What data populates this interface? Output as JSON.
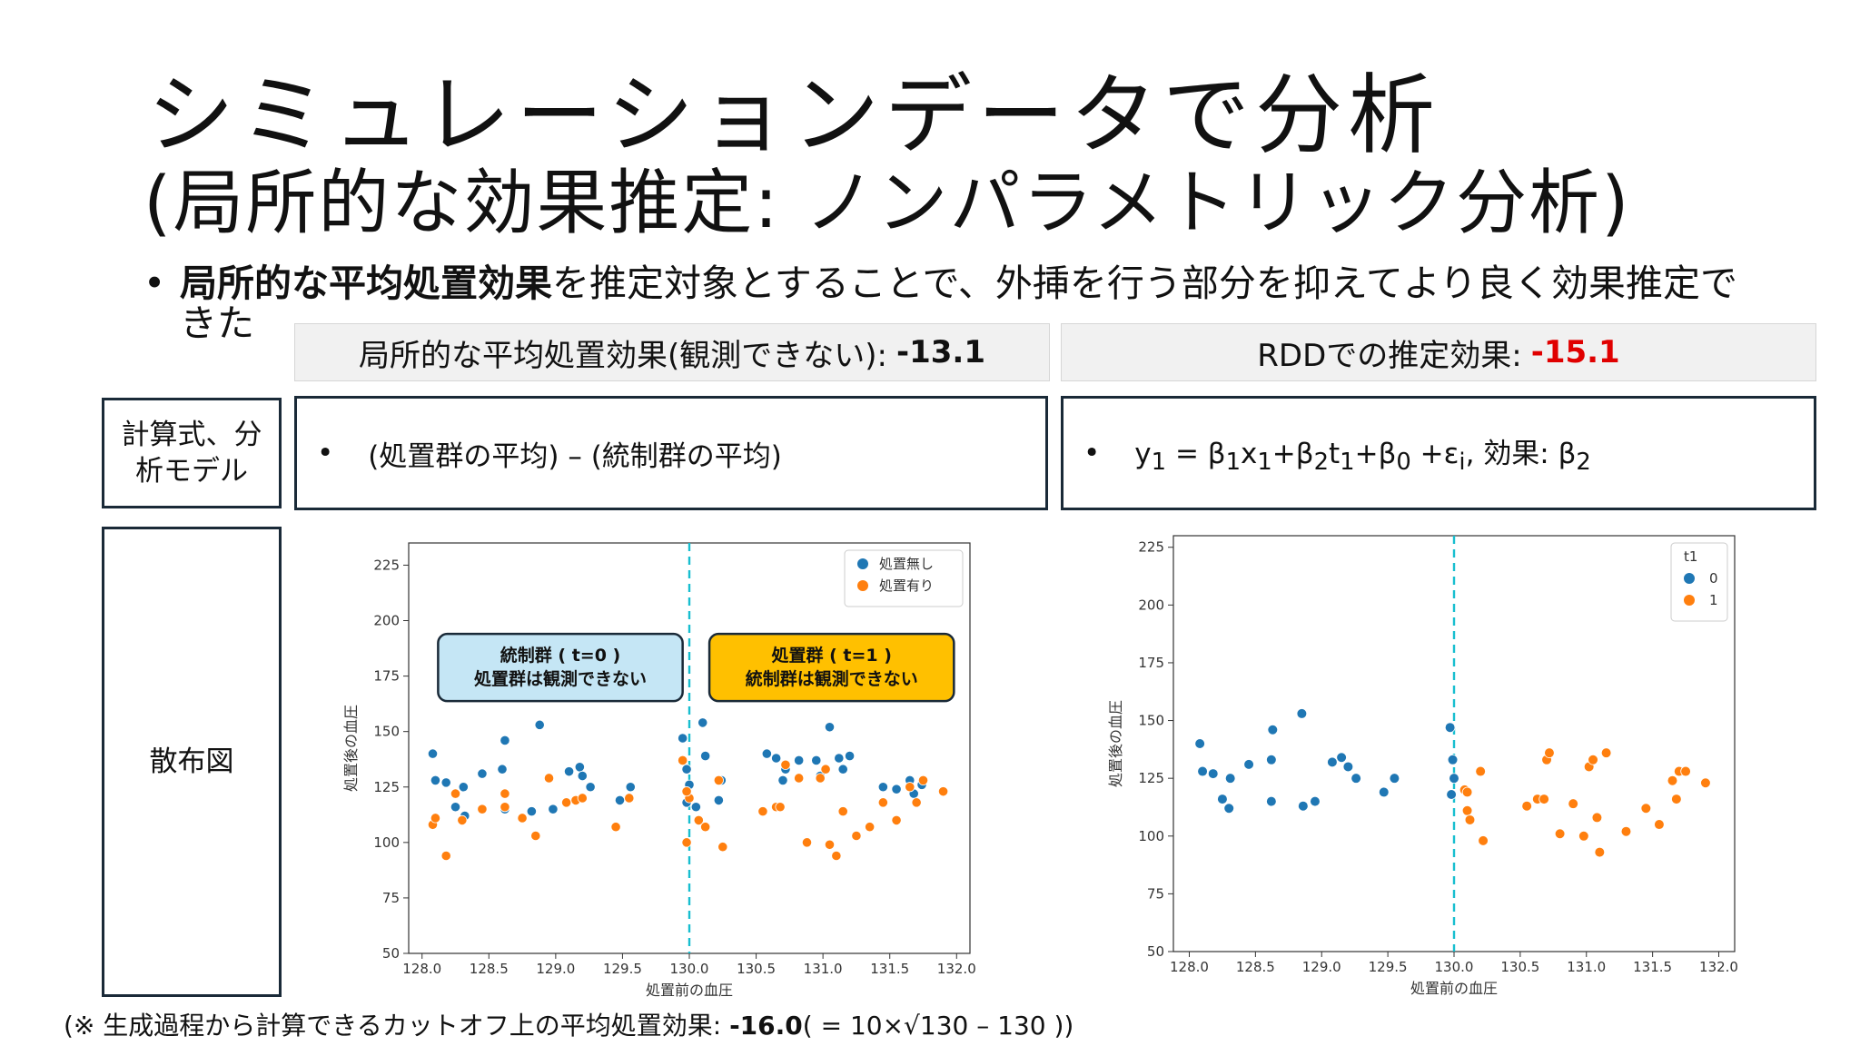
{
  "slide": {
    "title": "シミュレーションデータで分析",
    "subtitle": "(局所的な効果推定: ノンパラメトリック分析)",
    "bullet_bold": "局所的な平均処置効果",
    "bullet_rest": "を推定対象とすることで、外挿を行う部分を抑えてより良く効果推定できた",
    "left_header_label": "局所的な平均処置効果(観測できない):",
    "left_header_value": "-13.1",
    "right_header_label": "RDDでの推定効果:",
    "right_header_value": "-15.1",
    "row1_label": "計算式、分析モデル",
    "row2_label": "散布図",
    "left_formula": "(処置群の平均) – (統制群の平均)",
    "right_formula_parts": {
      "y": "y",
      "s1": "1",
      "eq": " = β",
      "x": "x",
      "plus": "+β",
      "s2": "2",
      "t": "t",
      "s0": "0",
      "eps": " +ε",
      "si": "i",
      "effect": ",  効果: β"
    },
    "note_prefix": "(※ 生成過程から計算できるカットオフ上の平均処置効果: ",
    "note_value": "-16.0",
    "note_suffix": "( = 10×√130 – 130 ))"
  },
  "chart_data": [
    {
      "type": "scatter",
      "xlabel": "処置前の血圧",
      "ylabel": "処置後の血圧",
      "xlim": [
        127.9,
        132.1
      ],
      "ylim": [
        50,
        235
      ],
      "xticks": [
        "128.0",
        "128.5",
        "129.0",
        "129.5",
        "130.0",
        "130.5",
        "131.0",
        "131.5",
        "132.0"
      ],
      "yticks": [
        "50",
        "75",
        "100",
        "125",
        "150",
        "175",
        "200",
        "225"
      ],
      "cutoff": 130,
      "legend": {
        "title": "",
        "placement": "top-right",
        "items": [
          "処置無し",
          "処置有り"
        ]
      },
      "annotations": [
        {
          "line1": "統制群 ( t=0 )",
          "line2": "処置群は観測できない",
          "color": "#c5e6f5"
        },
        {
          "line1": "処置群 ( t=1 )",
          "line2": "統制群は観測できない",
          "color": "#ffc000"
        }
      ],
      "series": [
        {
          "name": "処置無し",
          "color": "#1f77b4",
          "points": [
            [
              128.08,
              140
            ],
            [
              128.1,
              128
            ],
            [
              128.18,
              127
            ],
            [
              128.25,
              116
            ],
            [
              128.32,
              112
            ],
            [
              128.31,
              125
            ],
            [
              128.45,
              131
            ],
            [
              128.6,
              133
            ],
            [
              128.62,
              146
            ],
            [
              128.62,
              115
            ],
            [
              128.82,
              114
            ],
            [
              128.88,
              153
            ],
            [
              128.98,
              115
            ],
            [
              129.1,
              132
            ],
            [
              129.18,
              134
            ],
            [
              129.2,
              130
            ],
            [
              129.26,
              125
            ],
            [
              129.48,
              119
            ],
            [
              129.56,
              125
            ],
            [
              129.95,
              147
            ],
            [
              129.98,
              133
            ],
            [
              130.0,
              126
            ],
            [
              129.98,
              118
            ],
            [
              130.05,
              116
            ],
            [
              130.1,
              154
            ],
            [
              130.12,
              139
            ],
            [
              130.22,
              119
            ],
            [
              130.24,
              128
            ],
            [
              130.58,
              140
            ],
            [
              130.65,
              138
            ],
            [
              130.72,
              133
            ],
            [
              130.7,
              128
            ],
            [
              130.82,
              137
            ],
            [
              130.95,
              137
            ],
            [
              130.98,
              130
            ],
            [
              131.05,
              152
            ],
            [
              131.12,
              138
            ],
            [
              131.2,
              139
            ],
            [
              131.15,
              133
            ],
            [
              131.45,
              125
            ],
            [
              131.55,
              124
            ],
            [
              131.65,
              128
            ],
            [
              131.68,
              122
            ],
            [
              131.74,
              126
            ]
          ]
        },
        {
          "name": "処置有り",
          "color": "#ff7f0e",
          "points": [
            [
              128.08,
              108
            ],
            [
              128.1,
              111
            ],
            [
              128.18,
              94
            ],
            [
              128.25,
              122
            ],
            [
              128.3,
              110
            ],
            [
              128.45,
              115
            ],
            [
              128.62,
              122
            ],
            [
              128.62,
              116
            ],
            [
              128.75,
              111
            ],
            [
              128.85,
              103
            ],
            [
              128.95,
              129
            ],
            [
              129.08,
              118
            ],
            [
              129.15,
              119
            ],
            [
              129.2,
              120
            ],
            [
              129.45,
              107
            ],
            [
              129.55,
              120
            ],
            [
              129.95,
              137
            ],
            [
              130.0,
              120
            ],
            [
              129.98,
              123
            ],
            [
              129.98,
              100
            ],
            [
              130.07,
              110
            ],
            [
              130.12,
              107
            ],
            [
              130.22,
              128
            ],
            [
              130.25,
              98
            ],
            [
              130.55,
              114
            ],
            [
              130.65,
              116
            ],
            [
              130.72,
              135
            ],
            [
              130.68,
              116
            ],
            [
              130.82,
              129
            ],
            [
              130.88,
              100
            ],
            [
              130.98,
              129
            ],
            [
              131.02,
              133
            ],
            [
              131.05,
              99
            ],
            [
              131.1,
              94
            ],
            [
              131.15,
              114
            ],
            [
              131.25,
              103
            ],
            [
              131.35,
              107
            ],
            [
              131.45,
              118
            ],
            [
              131.55,
              110
            ],
            [
              131.65,
              125
            ],
            [
              131.7,
              118
            ],
            [
              131.75,
              128
            ],
            [
              131.9,
              123
            ]
          ]
        }
      ]
    },
    {
      "type": "scatter",
      "xlabel": "処置前の血圧",
      "ylabel": "処置後の血圧",
      "xlim": [
        127.88,
        132.12
      ],
      "ylim": [
        50,
        230
      ],
      "xticks": [
        "128.0",
        "128.5",
        "129.0",
        "129.5",
        "130.0",
        "130.5",
        "131.0",
        "131.5",
        "132.0"
      ],
      "yticks": [
        "50",
        "75",
        "100",
        "125",
        "150",
        "175",
        "200",
        "225"
      ],
      "cutoff": 130,
      "legend": {
        "title": "t1",
        "placement": "top-right",
        "items": [
          "0",
          "1"
        ]
      },
      "series": [
        {
          "name": "0",
          "color": "#1f77b4",
          "points": [
            [
              128.08,
              140
            ],
            [
              128.1,
              128
            ],
            [
              128.18,
              127
            ],
            [
              128.25,
              116
            ],
            [
              128.3,
              112
            ],
            [
              128.31,
              125
            ],
            [
              128.45,
              131
            ],
            [
              128.62,
              133
            ],
            [
              128.63,
              146
            ],
            [
              128.62,
              115
            ],
            [
              128.85,
              153
            ],
            [
              128.86,
              113
            ],
            [
              128.95,
              115
            ],
            [
              129.08,
              132
            ],
            [
              129.15,
              134
            ],
            [
              129.2,
              130
            ],
            [
              129.26,
              125
            ],
            [
              129.47,
              119
            ],
            [
              129.55,
              125
            ],
            [
              129.97,
              147
            ],
            [
              129.99,
              133
            ],
            [
              130.0,
              125
            ],
            [
              129.98,
              118
            ]
          ]
        },
        {
          "name": "1",
          "color": "#ff7f0e",
          "points": [
            [
              130.1,
              111
            ],
            [
              130.12,
              107
            ],
            [
              130.08,
              120
            ],
            [
              130.1,
              119
            ],
            [
              130.22,
              98
            ],
            [
              130.2,
              128
            ],
            [
              130.55,
              113
            ],
            [
              130.63,
              116
            ],
            [
              130.68,
              116
            ],
            [
              130.7,
              133
            ],
            [
              130.72,
              136
            ],
            [
              130.8,
              101
            ],
            [
              130.9,
              114
            ],
            [
              130.98,
              100
            ],
            [
              131.02,
              130
            ],
            [
              131.05,
              133
            ],
            [
              131.08,
              108
            ],
            [
              131.1,
              93
            ],
            [
              131.15,
              136
            ],
            [
              131.3,
              102
            ],
            [
              131.45,
              112
            ],
            [
              131.55,
              105
            ],
            [
              131.65,
              124
            ],
            [
              131.68,
              116
            ],
            [
              131.7,
              128
            ],
            [
              131.75,
              128
            ],
            [
              131.9,
              123
            ]
          ]
        }
      ]
    }
  ]
}
